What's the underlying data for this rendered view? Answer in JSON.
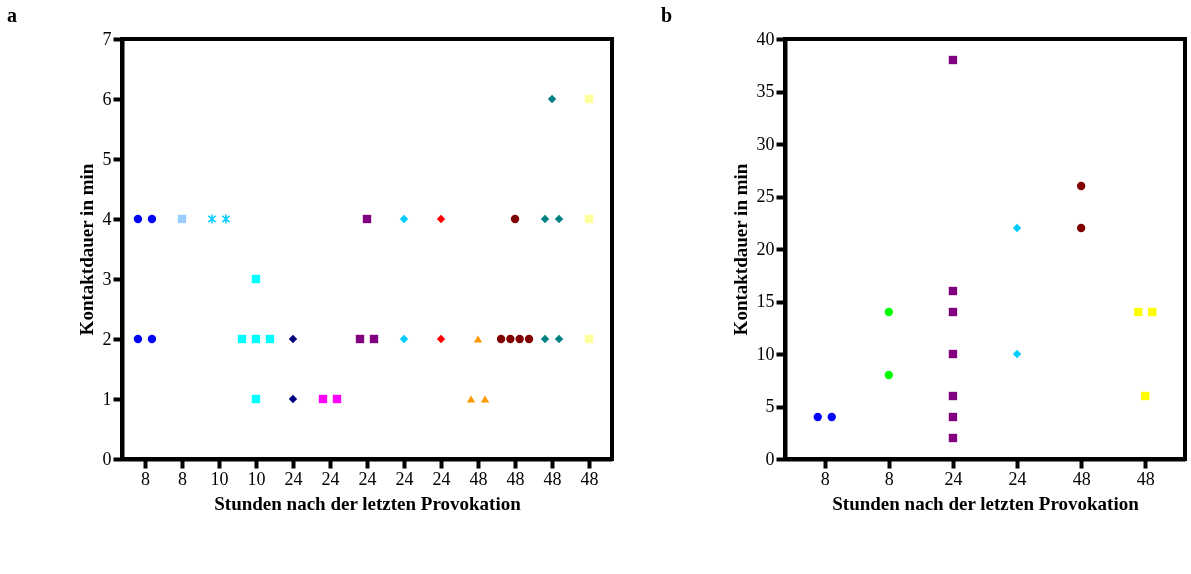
{
  "chart_data": [
    {
      "type": "scatter",
      "title": "a",
      "xlabel": "Stunden nach der letzten Provokation",
      "ylabel": "Kontaktdauer in min",
      "categories": [
        "8",
        "8",
        "10",
        "10",
        "24",
        "24",
        "24",
        "24",
        "24",
        "48",
        "48",
        "48",
        "48"
      ],
      "ylim": [
        0,
        7
      ],
      "yticks": [
        0,
        1,
        2,
        3,
        4,
        5,
        6,
        7
      ],
      "series": [
        {
          "color": "#0000ff",
          "marker": "circle",
          "values": [
            4,
            null,
            null,
            null,
            null,
            null,
            null,
            null,
            null,
            null,
            null,
            null,
            null
          ]
        },
        {
          "color": "#0000ff",
          "marker": "circle",
          "values": [
            4,
            null,
            null,
            null,
            null,
            null,
            null,
            null,
            null,
            null,
            null,
            null,
            null
          ]
        },
        {
          "color": "#0000ff",
          "marker": "circle",
          "values": [
            2,
            null,
            null,
            null,
            null,
            null,
            null,
            null,
            null,
            null,
            null,
            null,
            null
          ]
        },
        {
          "color": "#0000ff",
          "marker": "circle",
          "values": [
            2,
            null,
            null,
            null,
            null,
            null,
            null,
            null,
            null,
            null,
            null,
            null,
            null
          ]
        },
        {
          "color": "#99ccff",
          "marker": "square",
          "values": [
            null,
            4,
            null,
            null,
            null,
            null,
            null,
            null,
            null,
            null,
            null,
            null,
            null
          ]
        },
        {
          "color": "#00ccff",
          "marker": "cross",
          "values": [
            null,
            null,
            4,
            null,
            null,
            null,
            null,
            null,
            null,
            null,
            null,
            null,
            null
          ]
        },
        {
          "color": "#00ccff",
          "marker": "cross",
          "values": [
            null,
            null,
            4,
            null,
            null,
            null,
            null,
            null,
            null,
            null,
            null,
            null,
            null
          ]
        },
        {
          "color": "#00ffff",
          "marker": "square",
          "values": [
            null,
            null,
            null,
            3,
            null,
            null,
            null,
            null,
            null,
            null,
            null,
            null,
            null
          ]
        },
        {
          "color": "#00ffff",
          "marker": "square",
          "values": [
            null,
            null,
            null,
            2,
            null,
            null,
            null,
            null,
            null,
            null,
            null,
            null,
            null
          ]
        },
        {
          "color": "#00ffff",
          "marker": "square",
          "values": [
            null,
            null,
            null,
            2,
            null,
            null,
            null,
            null,
            null,
            null,
            null,
            null,
            null
          ]
        },
        {
          "color": "#00ffff",
          "marker": "square",
          "values": [
            null,
            null,
            null,
            2,
            null,
            null,
            null,
            null,
            null,
            null,
            null,
            null,
            null
          ]
        },
        {
          "color": "#00ffff",
          "marker": "square",
          "values": [
            null,
            null,
            null,
            1,
            null,
            null,
            null,
            null,
            null,
            null,
            null,
            null,
            null
          ]
        },
        {
          "color": "#000080",
          "marker": "diamond",
          "values": [
            null,
            null,
            null,
            null,
            2,
            null,
            null,
            null,
            null,
            null,
            null,
            null,
            null
          ]
        },
        {
          "color": "#000080",
          "marker": "diamond",
          "values": [
            null,
            null,
            null,
            null,
            1,
            null,
            null,
            null,
            null,
            null,
            null,
            null,
            null
          ]
        },
        {
          "color": "#ff00ff",
          "marker": "square",
          "values": [
            null,
            null,
            null,
            null,
            null,
            1,
            null,
            null,
            null,
            null,
            null,
            null,
            null
          ]
        },
        {
          "color": "#ff00ff",
          "marker": "square",
          "values": [
            null,
            null,
            null,
            null,
            null,
            1,
            null,
            null,
            null,
            null,
            null,
            null,
            null
          ]
        },
        {
          "color": "#800080",
          "marker": "square",
          "values": [
            null,
            null,
            null,
            null,
            null,
            null,
            4,
            null,
            null,
            null,
            null,
            null,
            null
          ]
        },
        {
          "color": "#800080",
          "marker": "square",
          "values": [
            null,
            null,
            null,
            null,
            null,
            null,
            2,
            null,
            null,
            null,
            null,
            null,
            null
          ]
        },
        {
          "color": "#800080",
          "marker": "square",
          "values": [
            null,
            null,
            null,
            null,
            null,
            null,
            2,
            null,
            null,
            null,
            null,
            null,
            null
          ]
        },
        {
          "color": "#00ccff",
          "marker": "diamond",
          "values": [
            null,
            null,
            null,
            null,
            null,
            null,
            null,
            4,
            null,
            null,
            null,
            null,
            null
          ]
        },
        {
          "color": "#00ccff",
          "marker": "diamond",
          "values": [
            null,
            null,
            null,
            null,
            null,
            null,
            null,
            2,
            null,
            null,
            null,
            null,
            null
          ]
        },
        {
          "color": "#ff0000",
          "marker": "diamond",
          "values": [
            null,
            null,
            null,
            null,
            null,
            null,
            null,
            null,
            4,
            null,
            null,
            null,
            null
          ]
        },
        {
          "color": "#ff0000",
          "marker": "diamond",
          "values": [
            null,
            null,
            null,
            null,
            null,
            null,
            null,
            null,
            2,
            null,
            null,
            null,
            null
          ]
        },
        {
          "color": "#ff9900",
          "marker": "triangle",
          "values": [
            null,
            null,
            null,
            null,
            null,
            null,
            null,
            null,
            null,
            2,
            null,
            null,
            null
          ]
        },
        {
          "color": "#ff9900",
          "marker": "triangle",
          "values": [
            null,
            null,
            null,
            null,
            null,
            null,
            null,
            null,
            null,
            1,
            null,
            null,
            null
          ]
        },
        {
          "color": "#ff9900",
          "marker": "triangle",
          "values": [
            null,
            null,
            null,
            null,
            null,
            null,
            null,
            null,
            null,
            1,
            null,
            null,
            null
          ]
        },
        {
          "color": "#800000",
          "marker": "circle",
          "values": [
            null,
            null,
            null,
            null,
            null,
            null,
            null,
            null,
            null,
            null,
            4,
            null,
            null
          ]
        },
        {
          "color": "#800000",
          "marker": "circle",
          "values": [
            null,
            null,
            null,
            null,
            null,
            null,
            null,
            null,
            null,
            null,
            2,
            null,
            null
          ]
        },
        {
          "color": "#800000",
          "marker": "circle",
          "values": [
            null,
            null,
            null,
            null,
            null,
            null,
            null,
            null,
            null,
            null,
            2,
            null,
            null
          ]
        },
        {
          "color": "#800000",
          "marker": "circle",
          "values": [
            null,
            null,
            null,
            null,
            null,
            null,
            null,
            null,
            null,
            null,
            2,
            null,
            null
          ]
        },
        {
          "color": "#800000",
          "marker": "circle",
          "values": [
            null,
            null,
            null,
            null,
            null,
            null,
            null,
            null,
            null,
            null,
            2,
            null,
            null
          ]
        },
        {
          "color": "#008080",
          "marker": "diamond",
          "values": [
            null,
            null,
            null,
            null,
            null,
            null,
            null,
            null,
            null,
            null,
            null,
            6,
            null
          ]
        },
        {
          "color": "#008080",
          "marker": "diamond",
          "values": [
            null,
            null,
            null,
            null,
            null,
            null,
            null,
            null,
            null,
            null,
            null,
            4,
            null
          ]
        },
        {
          "color": "#008080",
          "marker": "diamond",
          "values": [
            null,
            null,
            null,
            null,
            null,
            null,
            null,
            null,
            null,
            null,
            null,
            4,
            null
          ]
        },
        {
          "color": "#008080",
          "marker": "diamond",
          "values": [
            null,
            null,
            null,
            null,
            null,
            null,
            null,
            null,
            null,
            null,
            null,
            2,
            null
          ]
        },
        {
          "color": "#008080",
          "marker": "diamond",
          "values": [
            null,
            null,
            null,
            null,
            null,
            null,
            null,
            null,
            null,
            null,
            null,
            2,
            null
          ]
        },
        {
          "color": "#ffff99",
          "marker": "square",
          "values": [
            null,
            null,
            null,
            null,
            null,
            null,
            null,
            null,
            null,
            null,
            null,
            null,
            6
          ]
        },
        {
          "color": "#ffff99",
          "marker": "square",
          "values": [
            null,
            null,
            null,
            null,
            null,
            null,
            null,
            null,
            null,
            null,
            null,
            null,
            4
          ]
        },
        {
          "color": "#ffff99",
          "marker": "square",
          "values": [
            null,
            null,
            null,
            null,
            null,
            null,
            null,
            null,
            null,
            null,
            null,
            null,
            2
          ]
        }
      ]
    },
    {
      "type": "scatter",
      "title": "b",
      "xlabel": "Stunden nach der letzten Provokation",
      "ylabel": "Kontaktdauer in min",
      "categories": [
        "8",
        "8",
        "24",
        "24",
        "48",
        "48"
      ],
      "ylim": [
        0,
        40
      ],
      "yticks": [
        0,
        5,
        10,
        15,
        20,
        25,
        30,
        35,
        40
      ],
      "series": [
        {
          "color": "#0000ff",
          "marker": "circle",
          "values": [
            4,
            null,
            null,
            null,
            null,
            null
          ]
        },
        {
          "color": "#0000ff",
          "marker": "circle",
          "values": [
            4,
            null,
            null,
            null,
            null,
            null
          ]
        },
        {
          "color": "#00ff00",
          "marker": "circle",
          "values": [
            null,
            14,
            null,
            null,
            null,
            null
          ]
        },
        {
          "color": "#00ff00",
          "marker": "circle",
          "values": [
            null,
            8,
            null,
            null,
            null,
            null
          ]
        },
        {
          "color": "#800080",
          "marker": "square",
          "values": [
            null,
            null,
            38,
            null,
            null,
            null
          ]
        },
        {
          "color": "#800080",
          "marker": "square",
          "values": [
            null,
            null,
            16,
            null,
            null,
            null
          ]
        },
        {
          "color": "#800080",
          "marker": "square",
          "values": [
            null,
            null,
            14,
            null,
            null,
            null
          ]
        },
        {
          "color": "#800080",
          "marker": "square",
          "values": [
            null,
            null,
            10,
            null,
            null,
            null
          ]
        },
        {
          "color": "#800080",
          "marker": "square",
          "values": [
            null,
            null,
            6,
            null,
            null,
            null
          ]
        },
        {
          "color": "#800080",
          "marker": "square",
          "values": [
            null,
            null,
            4,
            null,
            null,
            null
          ]
        },
        {
          "color": "#800080",
          "marker": "square",
          "values": [
            null,
            null,
            2,
            null,
            null,
            null
          ]
        },
        {
          "color": "#00ccff",
          "marker": "diamond",
          "values": [
            null,
            null,
            null,
            22,
            null,
            null
          ]
        },
        {
          "color": "#00ccff",
          "marker": "diamond",
          "values": [
            null,
            null,
            null,
            10,
            null,
            null
          ]
        },
        {
          "color": "#800000",
          "marker": "circle",
          "values": [
            null,
            null,
            null,
            null,
            26,
            null
          ]
        },
        {
          "color": "#800000",
          "marker": "circle",
          "values": [
            null,
            null,
            null,
            null,
            22,
            null
          ]
        },
        {
          "color": "#ffff00",
          "marker": "square",
          "values": [
            null,
            null,
            null,
            null,
            null,
            14
          ]
        },
        {
          "color": "#ffff00",
          "marker": "square",
          "values": [
            null,
            null,
            null,
            null,
            null,
            14
          ]
        },
        {
          "color": "#ffff00",
          "marker": "square",
          "values": [
            null,
            null,
            null,
            null,
            null,
            6
          ]
        }
      ]
    }
  ]
}
